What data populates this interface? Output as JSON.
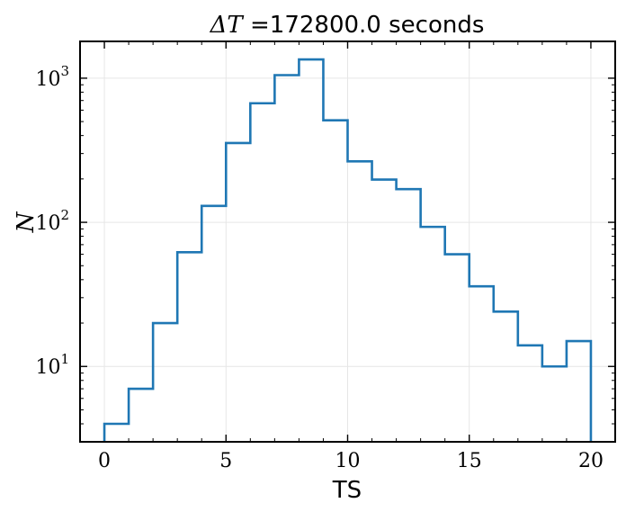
{
  "chart_data": {
    "type": "histogram",
    "title_prefix": "ΔT",
    "title_suffix": " =172800.0 seconds",
    "xlabel": "TS",
    "ylabel": "N",
    "xlim": [
      -1,
      21
    ],
    "ylim": [
      3,
      1800
    ],
    "yscale": "log",
    "grid": true,
    "xticks": [
      0,
      5,
      10,
      15,
      20
    ],
    "yticks": [
      {
        "value": 10,
        "base": "10",
        "exp": "1"
      },
      {
        "value": 100,
        "base": "10",
        "exp": "2"
      },
      {
        "value": 1000,
        "base": "10",
        "exp": "3"
      }
    ],
    "bin_edges": [
      0,
      1,
      2,
      3,
      4,
      5,
      6,
      7,
      8,
      9,
      10,
      11,
      12,
      13,
      14,
      15,
      16,
      17,
      18,
      19,
      20
    ],
    "counts": [
      4,
      7,
      20,
      62,
      130,
      355,
      670,
      1050,
      1350,
      510,
      265,
      198,
      170,
      93,
      60,
      36,
      24,
      14,
      10,
      15
    ],
    "line_color": "#1f77b4"
  }
}
